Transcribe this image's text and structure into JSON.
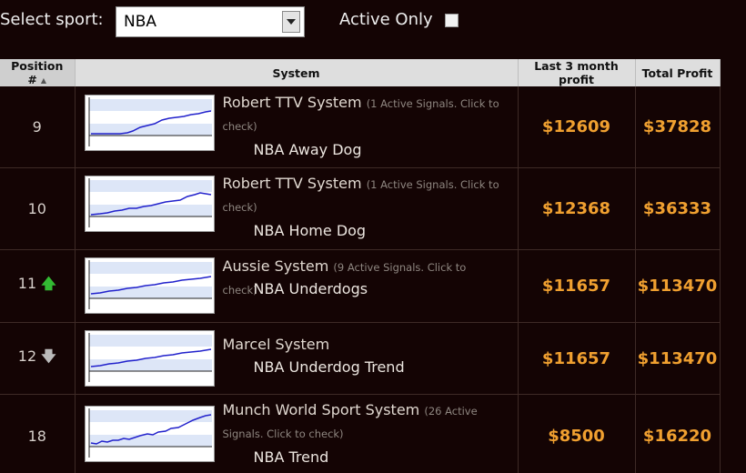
{
  "filter": {
    "select_label": "Select sport:",
    "sport_value": "NBA",
    "active_only_label": "Active Only"
  },
  "table": {
    "headers": {
      "position": "Position #",
      "system": "System",
      "last3": "Last 3 month profit",
      "total": "Total Profit"
    },
    "rows": [
      {
        "position": "9",
        "name": "Robert TTV System",
        "signals": "(1 Active Signals. Click to check)",
        "sub": "NBA Away Dog",
        "last3": "$12609",
        "total": "$37828"
      },
      {
        "position": "10",
        "name": "Robert TTV System",
        "signals": "(1 Active Signals. Click to check)",
        "sub": "NBA Home Dog",
        "last3": "$12368",
        "total": "$36333"
      },
      {
        "position": "11",
        "trend": "up",
        "name": "Aussie System",
        "signals": "(9 Active Signals. Click to check)",
        "sub": "NBA Underdogs",
        "last3": "$11657",
        "total": "$113470"
      },
      {
        "position": "12",
        "trend": "down",
        "name": "Marcel System",
        "signals": "",
        "sub": "NBA Underdog Trend",
        "last3": "$11657",
        "total": "$113470"
      },
      {
        "position": "18",
        "name": "Munch World Sport System",
        "signals": "(26 Active Signals. Click to check)",
        "sub": "NBA Trend",
        "last3": "$8500",
        "total": "$16220"
      }
    ]
  },
  "colors": {
    "background": "#140404",
    "profit": "#f0a030",
    "trend_up": "#33bb33"
  },
  "icons": {
    "sort": "sort-up-arrow-icon",
    "dropdown": "dropdown-arrow-icon",
    "trend_up": "green-up-arrow-icon",
    "trend_down": "gray-down-arrow-icon"
  }
}
